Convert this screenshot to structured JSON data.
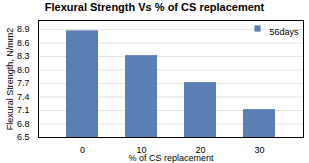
{
  "chart_data": {
    "type": "bar",
    "title": "Flexural Strength Vs % of CS replacement",
    "xlabel": "% of CS replacement",
    "ylabel": "Flexural Strength, N/mm2",
    "categories": [
      "0",
      "10",
      "20",
      "30"
    ],
    "series": [
      {
        "name": "56days",
        "color": "#5b7fb5",
        "values": [
          8.87,
          8.32,
          7.72,
          7.12
        ]
      }
    ],
    "ylim": [
      6.5,
      9.1
    ],
    "yticks": [
      6.5,
      6.8,
      7.1,
      7.4,
      7.7,
      {
        "value": 8,
        "label": "8.0"
      },
      8.3,
      8.6,
      8.9
    ],
    "grid": true,
    "legend": "upper right"
  }
}
